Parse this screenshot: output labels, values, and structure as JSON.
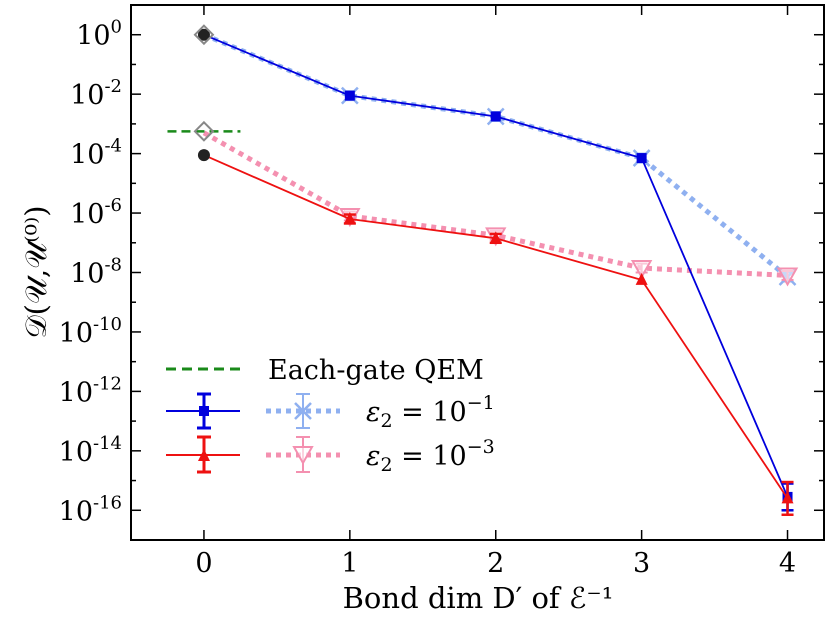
{
  "chart_data": {
    "type": "line",
    "title": "",
    "xlabel": "Bond dim D′ of ℰ⁻¹",
    "ylabel": "𝒟(𝒰,𝒰⁽⁰⁾)",
    "yscale": "log",
    "xlim": [
      -0.5,
      4.25
    ],
    "ylim_exp": [
      -17,
      1
    ],
    "x_ticks": [
      0,
      1,
      2,
      3,
      4
    ],
    "y_tick_exps": [
      0,
      -2,
      -4,
      -6,
      -8,
      -10,
      -12,
      -14,
      -16
    ],
    "y_tick_labels": [
      {
        "base": "10",
        "exp": "0"
      },
      {
        "base": "10",
        "exp": "-2"
      },
      {
        "base": "10",
        "exp": "-4"
      },
      {
        "base": "10",
        "exp": "-6"
      },
      {
        "base": "10",
        "exp": "-8"
      },
      {
        "base": "10",
        "exp": "-10"
      },
      {
        "base": "10",
        "exp": "-12"
      },
      {
        "base": "10",
        "exp": "-14"
      },
      {
        "base": "10",
        "exp": "-16"
      }
    ],
    "series": [
      {
        "name": "ε2=10^-1 (solid)",
        "color": "#0000dd",
        "style": "solid",
        "marker": "square",
        "x": [
          0,
          1,
          2,
          3,
          4
        ],
        "y_exp": [
          0,
          -2.05,
          -2.75,
          -4.15,
          -15.55
        ],
        "err": [
          0,
          0,
          0,
          0,
          0.45
        ]
      },
      {
        "name": "ε2=10^-1 (dotted)",
        "color": "#8fb0f0",
        "style": "dotted",
        "marker": "x",
        "x": [
          0,
          1,
          2,
          3,
          4
        ],
        "y_exp": [
          0,
          -2.05,
          -2.75,
          -4.15,
          -8.15
        ],
        "err": [
          0,
          0.15,
          0.15,
          0.15,
          0.15
        ]
      },
      {
        "name": "ε2=10^-3 (solid)",
        "color": "#ee1111",
        "style": "solid",
        "marker": "triangle-up",
        "x": [
          0,
          1,
          2,
          3,
          4
        ],
        "y_exp": [
          -4.05,
          -6.2,
          -6.85,
          -8.25,
          -15.6
        ],
        "err": [
          0,
          0.15,
          0.15,
          0,
          0.55
        ]
      },
      {
        "name": "ε2=10^-3 (dotted)",
        "color": "#f490b0",
        "style": "dotted",
        "marker": "triangle-down",
        "x": [
          0,
          1,
          2,
          3,
          4
        ],
        "y_exp": [
          -3.3,
          -6.1,
          -6.75,
          -7.85,
          -8.1
        ],
        "err": [
          0,
          0.15,
          0.15,
          0.15,
          0.15
        ]
      }
    ],
    "annotations": {
      "each_gate_qem_level_exp": -3.25,
      "each_gate_qem_x_range": [
        -0.25,
        0.25
      ],
      "black_points": [
        {
          "x": 0,
          "y_exp": 0
        },
        {
          "x": 0,
          "y_exp": -4.05
        }
      ],
      "gray_diamonds": [
        {
          "x": 0,
          "y_exp": 0
        },
        {
          "x": 0,
          "y_exp": -3.25
        }
      ]
    },
    "legend": {
      "placement": "lower-left",
      "entries": [
        {
          "label": "Each-gate QEM",
          "color": "#1a8a1a",
          "style": "dashed"
        },
        {
          "label": "ε₂ = 10⁻¹"
        },
        {
          "label": "ε₂ = 10⁻³"
        }
      ]
    }
  }
}
